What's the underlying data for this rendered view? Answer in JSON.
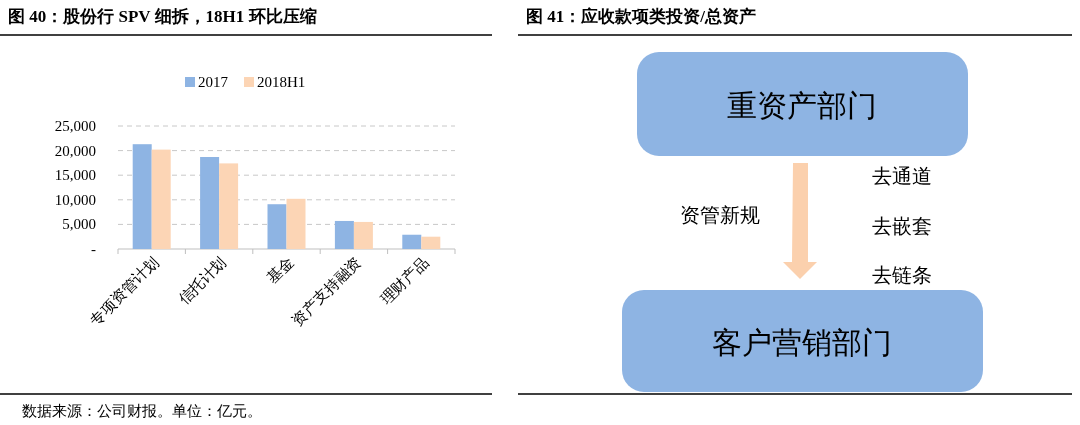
{
  "chart_data": [
    {
      "type": "bar",
      "title": "图 40：股份行 SPV 细拆，18H1 环比压缩",
      "categories": [
        "专项资管计划",
        "信托计划",
        "基金",
        "资产支持融资",
        "理财产品"
      ],
      "series": [
        {
          "name": "2017",
          "color": "#8eb4e3",
          "values": [
            21300,
            18700,
            9100,
            5700,
            2900
          ]
        },
        {
          "name": "2018H1",
          "color": "#fcd5b5",
          "values": [
            20200,
            17400,
            10200,
            5500,
            2500
          ]
        }
      ],
      "ylim": [
        0,
        25000
      ],
      "yticks": [
        {
          "value": 0,
          "label": "-"
        },
        {
          "value": 5000,
          "label": "5,000"
        },
        {
          "value": 10000,
          "label": "10,000"
        },
        {
          "value": 15000,
          "label": "15,000"
        },
        {
          "value": 20000,
          "label": "20,000"
        },
        {
          "value": 25000,
          "label": "25,000"
        }
      ],
      "grid": "y",
      "legend": "top",
      "annotations": [
        "数据来源：公司财报。单位：亿元。"
      ]
    },
    {
      "type": "other",
      "title": "图 41：应收款项类投资/总资产",
      "annotations": [
        "重资产部门",
        "资管新规",
        "去通道",
        "去嵌套",
        "去链条",
        "客户营销部门"
      ]
    }
  ]
}
